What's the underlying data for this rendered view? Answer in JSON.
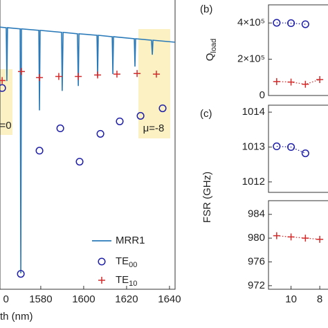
{
  "chart_data": [
    {
      "type": "line",
      "x_label": "th (nm)",
      "xlim": [
        1561,
        1642.6
      ],
      "xticks": [
        {
          "value": 1560,
          "label": "0"
        },
        1580,
        1600,
        1620,
        1640
      ],
      "ylim": [
        0,
        1
      ],
      "legend": "lower right",
      "annotations": [
        "=0",
        "μ=-8"
      ],
      "series": [
        {
          "name": [
            "MRR1"
          ],
          "style": "line",
          "color": "#2a7ab9",
          "x": [
            1561.0,
            1563.9,
            1564.2,
            1564.5,
            1570.4,
            1570.7,
            1571.0,
            1579.1,
            1579.4,
            1579.7,
            1589.7,
            1590.0,
            1590.4,
            1597.1,
            1597.5,
            1597.8,
            1606.2,
            1606.5,
            1606.8,
            1613.3,
            1613.6,
            1613.9,
            1623.6,
            1623.9,
            1624.2,
            1631.6,
            1632.0,
            1632.3,
            1642.6
          ],
          "values": [
            0.904,
            0.902,
            0.718,
            0.902,
            0.898,
            0.055,
            0.898,
            0.893,
            0.617,
            0.893,
            0.886,
            0.684,
            0.886,
            0.881,
            0.701,
            0.881,
            0.876,
            0.732,
            0.876,
            0.871,
            0.742,
            0.871,
            0.864,
            0.768,
            0.864,
            0.859,
            0.809,
            0.859,
            0.852
          ]
        },
        {
          "name": [
            "TE",
            "00"
          ],
          "style": "circle",
          "color": "#1f1fa8",
          "x": [
            1562.0,
            1570.7,
            1579.4,
            1589.1,
            1598.1,
            1607.8,
            1616.8,
            1626.5,
            1636.8
          ],
          "values": [
            0.694,
            0.053,
            0.478,
            0.555,
            0.44,
            0.536,
            0.579,
            0.598,
            0.624
          ]
        },
        {
          "name": [
            "TE",
            "10"
          ],
          "style": "plus",
          "color": "#d42a2a",
          "x": [
            1562.0,
            1571.0,
            1579.4,
            1588.4,
            1597.5,
            1606.5,
            1615.5,
            1624.9,
            1633.9
          ],
          "values": [
            0.72,
            0.751,
            0.73,
            0.734,
            0.734,
            0.739,
            0.742,
            0.744,
            0.742
          ]
        }
      ]
    },
    {
      "type": "line",
      "panel": "(b)",
      "y_label": [
        "Q",
        "load"
      ],
      "xlim": [
        11.57,
        7.33
      ],
      "ylim": [
        0,
        500000
      ],
      "yticks": [
        0,
        {
          "value": 200000,
          "label": "2×10⁵"
        },
        {
          "value": 400000,
          "label": "4×10⁵"
        }
      ],
      "series": [
        {
          "style": "circle",
          "linestyle": "dotted",
          "color": "#1f1fa8",
          "x": [
            11,
            10,
            9
          ],
          "values": [
            401000,
            399000,
            393000
          ]
        },
        {
          "style": "plus",
          "linestyle": "dotted",
          "color": "#d42a2a",
          "x": [
            11,
            10,
            9,
            8
          ],
          "values": [
            77000,
            74000,
            62000,
            88000
          ]
        }
      ]
    },
    {
      "type": "line",
      "panel": "(c)",
      "y_label": [
        "FSR (GHz)"
      ],
      "xlim": [
        11.57,
        7.33
      ],
      "ylim": [
        1011.7,
        1014.2
      ],
      "yticks": [
        1012,
        1013,
        1014
      ],
      "series": [
        {
          "style": "circle",
          "linestyle": "dotted",
          "color": "#1f1fa8",
          "x": [
            11,
            10,
            9
          ],
          "values": [
            1013.02,
            1013.0,
            1012.82
          ]
        }
      ]
    },
    {
      "type": "line",
      "xlim": [
        11.57,
        7.33
      ],
      "xticks": [
        10,
        8
      ],
      "ylim": [
        971.4,
        986.3
      ],
      "yticks": [
        972,
        976,
        980,
        984
      ],
      "series": [
        {
          "style": "plus",
          "linestyle": "dotted",
          "color": "#d42a2a",
          "x": [
            11,
            10,
            9,
            8
          ],
          "values": [
            980.4,
            980.2,
            980.0,
            979.8
          ]
        }
      ]
    }
  ]
}
